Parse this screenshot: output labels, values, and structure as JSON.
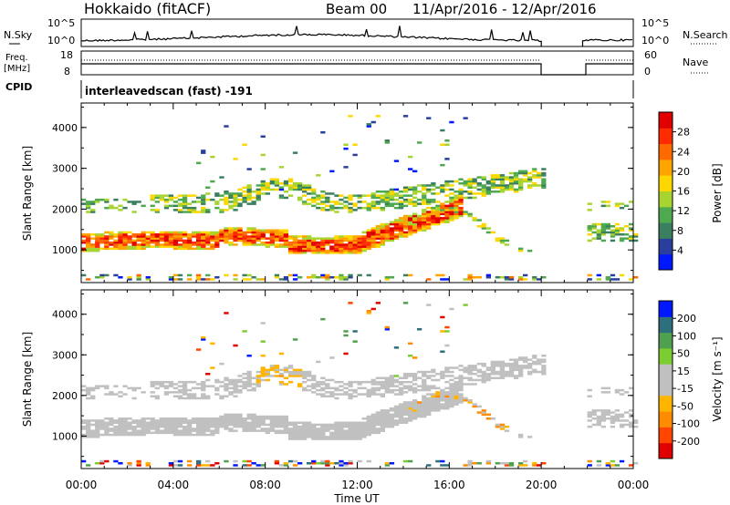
{
  "header": {
    "station": "Hokkaido (fitACF)",
    "beam": "Beam 00",
    "date_range": "11/Apr/2016 - 12/Apr/2016"
  },
  "top_panels": {
    "nsky": {
      "label": "N.Sky",
      "ymax_label": "10^5",
      "ymin_label": "10^0"
    },
    "nsearch": {
      "label": "N.Search",
      "ymax_label": "10^5",
      "ymin_label": "10^0"
    },
    "freq": {
      "label_line1": "Freq.",
      "label_line2": "[MHz]",
      "ymax_label": "18",
      "ymin_label": "8"
    },
    "nave": {
      "label": "Nave",
      "ymax_label": "60",
      "ymin_label": "0"
    },
    "cpid": {
      "label": "CPID",
      "value": "interleavedscan (fast) -191"
    }
  },
  "colors": {
    "power": [
      "#0018ff",
      "#2a3f9d",
      "#3a7f5f",
      "#4faa4f",
      "#a8d431",
      "#ffd700",
      "#ffa500",
      "#ff6a00",
      "#ff2a00",
      "#e00000"
    ],
    "velocity": [
      "#e00000",
      "#ff4500",
      "#ff8c00",
      "#ffb400",
      "#c0c0c0",
      "#c0c0c0",
      "#7ccd32",
      "#4fa04f",
      "#2e6f7e",
      "#0018ff"
    ]
  },
  "chart_data": [
    {
      "type": "heatmap",
      "name": "power",
      "ylabel": "Slant Range [km]",
      "yticks": [
        1000,
        2000,
        3000,
        4000
      ],
      "ylim": [
        200,
        4600
      ],
      "colorbar": {
        "label": "Power [dB]",
        "ticks": [
          "4",
          "8",
          "12",
          "16",
          "20",
          "24",
          "28"
        ],
        "range": [
          0,
          32
        ]
      }
    },
    {
      "type": "heatmap",
      "name": "velocity",
      "ylabel": "Slant Range [km]",
      "yticks": [
        1000,
        2000,
        3000,
        4000
      ],
      "ylim": [
        200,
        4600
      ],
      "colorbar": {
        "label": "Velocity [m s⁻¹]",
        "ticks": [
          "-200",
          "-100",
          "-50",
          "-15",
          "15",
          "50",
          "100",
          "200"
        ]
      }
    }
  ],
  "xaxis": {
    "label": "Time UT",
    "ticks": [
      "00:00",
      "04:00",
      "08:00",
      "12:00",
      "16:00",
      "20:00",
      "00:00"
    ],
    "range_hours": [
      0,
      24
    ],
    "data_gap_hours": [
      20.0,
      21.8
    ]
  }
}
